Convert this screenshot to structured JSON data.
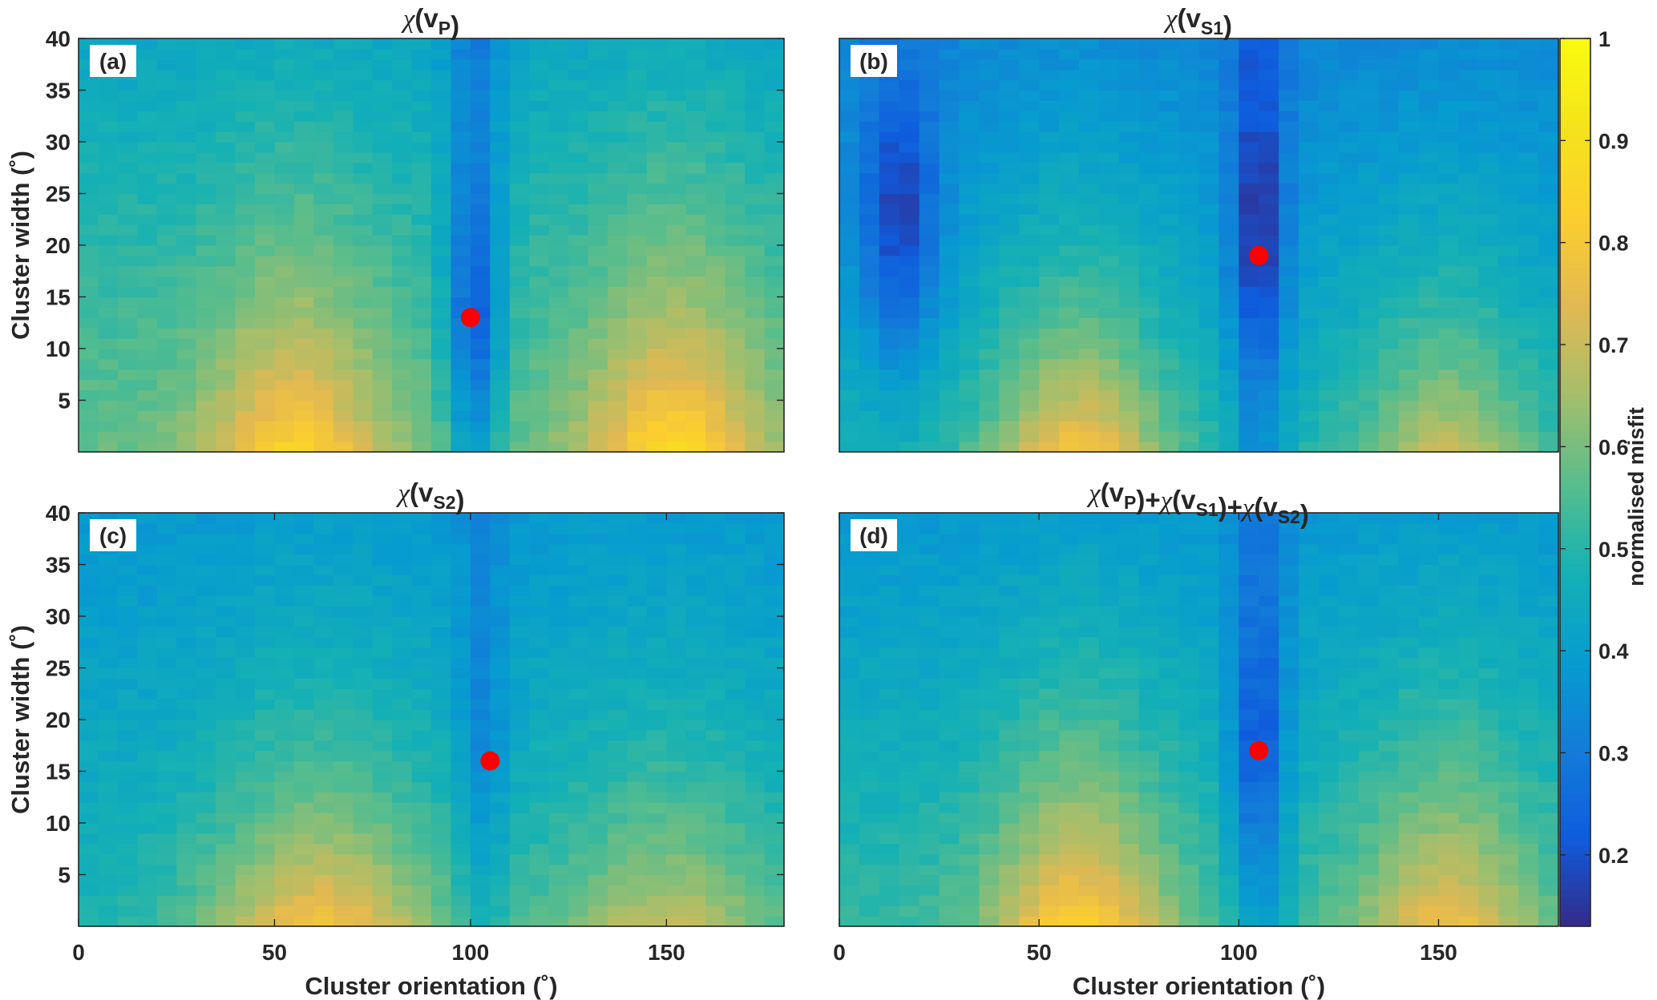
{
  "chart_data": [
    {
      "type": "heatmap",
      "panel_label": "(a)",
      "title_parts": [
        {
          "t": "χ",
          "italic": true
        },
        {
          "t": "(v"
        },
        {
          "t": "P",
          "sub": true
        },
        {
          "t": ")"
        }
      ],
      "xlabel": "",
      "ylabel": "Cluster width (˚)",
      "xlim": [
        0,
        180
      ],
      "ylim": [
        0,
        40
      ],
      "xticks": [],
      "yticks": [
        "5",
        "10",
        "15",
        "20",
        "25",
        "30",
        "35",
        "40"
      ],
      "ytick_values": [
        5,
        10,
        15,
        20,
        25,
        30,
        35,
        40
      ],
      "best_fit_marker": {
        "x": 100,
        "y": 13,
        "color": "#ff0000"
      },
      "field": {
        "valley_x": 101,
        "valley_y": 13,
        "valley_sigma_x": 7,
        "valley_depth": 0.3,
        "lobes": [
          {
            "x": 55,
            "a": 0.85
          },
          {
            "x": 152,
            "a": 0.88
          }
        ],
        "lobe_sigma_x": 22,
        "lobe_decay_y": 16,
        "base_low": 0.58,
        "base_high": 0.43
      }
    },
    {
      "type": "heatmap",
      "panel_label": "(b)",
      "title_parts": [
        {
          "t": "χ",
          "italic": true
        },
        {
          "t": "(v"
        },
        {
          "t": "S1",
          "sub": true
        },
        {
          "t": ")"
        }
      ],
      "xlabel": "",
      "ylabel": "",
      "xlim": [
        0,
        180
      ],
      "ylim": [
        0,
        40
      ],
      "xticks": [],
      "yticks": [],
      "best_fit_marker": {
        "x": 105,
        "y": 19,
        "color": "#ff0000"
      },
      "field": {
        "valley_x": 105,
        "valley_y": 20,
        "valley_sigma_x": 7,
        "valley_depth": 0.27,
        "second_valley": {
          "x": 15,
          "y": 22,
          "depth": 0.22
        },
        "lobes": [
          {
            "x": 60,
            "a": 0.8
          },
          {
            "x": 152,
            "a": 0.7
          }
        ],
        "lobe_sigma_x": 22,
        "lobe_decay_y": 15,
        "base_low": 0.48,
        "base_high": 0.33
      }
    },
    {
      "type": "heatmap",
      "panel_label": "(c)",
      "title_parts": [
        {
          "t": "χ",
          "italic": true
        },
        {
          "t": "(v"
        },
        {
          "t": "S2",
          "sub": true
        },
        {
          "t": ")"
        }
      ],
      "xlabel": "Cluster orientation (˚)",
      "ylabel": "Cluster width (˚)",
      "xlim": [
        0,
        180
      ],
      "ylim": [
        0,
        40
      ],
      "xticks": [
        "0",
        "50",
        "100",
        "150"
      ],
      "xtick_values": [
        0,
        50,
        100,
        150
      ],
      "yticks": [
        "5",
        "10",
        "15",
        "20",
        "25",
        "30",
        "35",
        "40"
      ],
      "ytick_values": [
        5,
        10,
        15,
        20,
        25,
        30,
        35,
        40
      ],
      "best_fit_marker": {
        "x": 105,
        "y": 16,
        "color": "#ff0000"
      },
      "field": {
        "valley_x": 103,
        "valley_y": 18,
        "valley_sigma_x": 6,
        "valley_depth": 0.12,
        "lobes": [
          {
            "x": 62,
            "a": 0.8
          },
          {
            "x": 150,
            "a": 0.7
          }
        ],
        "lobe_sigma_x": 30,
        "lobe_decay_y": 14,
        "base_low": 0.48,
        "base_high": 0.38
      }
    },
    {
      "type": "heatmap",
      "panel_label": "(d)",
      "title_parts": [
        {
          "t": "χ",
          "italic": true
        },
        {
          "t": "(v"
        },
        {
          "t": "P",
          "sub": true
        },
        {
          "t": ")+"
        },
        {
          "t": "χ",
          "italic": true
        },
        {
          "t": "(v"
        },
        {
          "t": "S1",
          "sub": true
        },
        {
          "t": ")+"
        },
        {
          "t": "χ",
          "italic": true
        },
        {
          "t": "(v"
        },
        {
          "t": "S2",
          "sub": true
        },
        {
          "t": ")"
        }
      ],
      "xlabel": "Cluster orientation (˚)",
      "ylabel": "",
      "xlim": [
        0,
        180
      ],
      "ylim": [
        0,
        40
      ],
      "xticks": [
        "0",
        "50",
        "100",
        "150"
      ],
      "xtick_values": [
        0,
        50,
        100,
        150
      ],
      "yticks": [],
      "best_fit_marker": {
        "x": 105,
        "y": 17,
        "color": "#ff0000"
      },
      "field": {
        "valley_x": 105,
        "valley_y": 17,
        "valley_sigma_x": 7,
        "valley_depth": 0.25,
        "lobes": [
          {
            "x": 60,
            "a": 0.85
          },
          {
            "x": 152,
            "a": 0.78
          }
        ],
        "lobe_sigma_x": 22,
        "lobe_decay_y": 15,
        "base_low": 0.52,
        "base_high": 0.38
      }
    }
  ],
  "colorbar": {
    "label": "normalised misfit",
    "range": [
      0.13,
      1.0
    ],
    "ticks": [
      "0.2",
      "0.3",
      "0.4",
      "0.5",
      "0.6",
      "0.7",
      "0.8",
      "0.9",
      "1"
    ],
    "tick_values": [
      0.2,
      0.3,
      0.4,
      0.5,
      0.6,
      0.7,
      0.8,
      0.9,
      1.0
    ],
    "colormap": "parula"
  }
}
